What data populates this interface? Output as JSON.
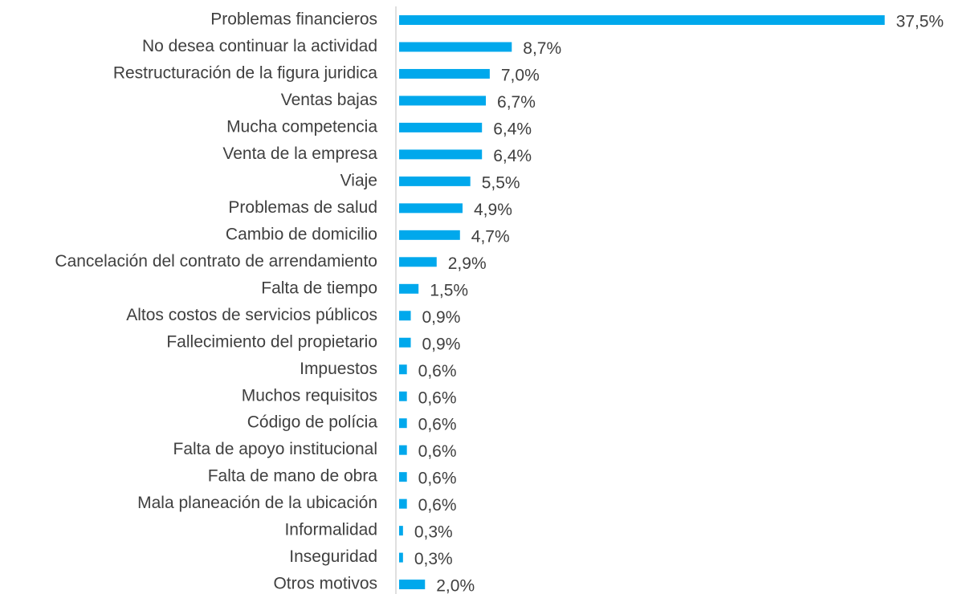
{
  "chart_data": {
    "type": "bar",
    "orientation": "horizontal",
    "color": "#00a8ec",
    "categories": [
      "Problemas financieros",
      "No desea continuar la actividad",
      "Restructuración de la figura juridica",
      "Ventas bajas",
      "Mucha competencia",
      "Venta de la empresa",
      "Viaje",
      "Problemas de salud",
      "Cambio de domicilio",
      "Cancelación del contrato de arrendamiento",
      "Falta de tiempo",
      "Altos costos de servicios públicos",
      "Fallecimiento del propietario",
      "Impuestos",
      "Muchos requisitos",
      "Código de polícia",
      "Falta de apoyo institucional",
      "Falta de mano de obra",
      "Mala planeación de la ubicación",
      "Informalidad",
      "Inseguridad",
      "Otros motivos"
    ],
    "values": [
      37.5,
      8.7,
      7.0,
      6.7,
      6.4,
      6.4,
      5.5,
      4.9,
      4.7,
      2.9,
      1.5,
      0.9,
      0.9,
      0.6,
      0.6,
      0.6,
      0.6,
      0.6,
      0.6,
      0.3,
      0.3,
      2.0
    ],
    "value_labels": [
      "37,5%",
      "8,7%",
      "7,0%",
      "6,7%",
      "6,4%",
      "6,4%",
      "5,5%",
      "4,9%",
      "4,7%",
      "2,9%",
      "1,5%",
      "0,9%",
      "0,9%",
      "0,6%",
      "0,6%",
      "0,6%",
      "0,6%",
      "0,6%",
      "0,6%",
      "0,3%",
      "0,3%",
      "2,0%"
    ],
    "xlim": [
      0,
      40
    ]
  }
}
